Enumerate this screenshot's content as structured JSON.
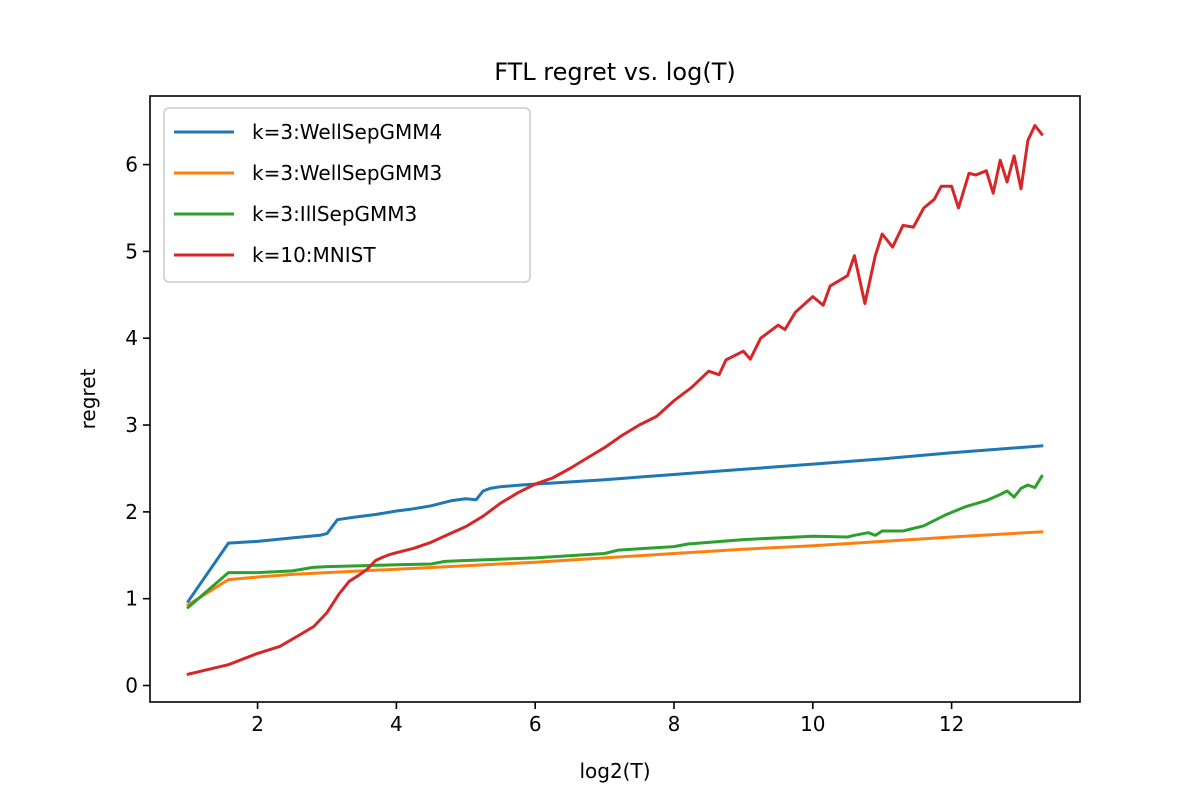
{
  "chart_data": {
    "type": "line",
    "title": "FTL regret vs. log(T)",
    "xlabel": "log2(T)",
    "ylabel": "regret",
    "xlim": [
      0.45,
      13.85
    ],
    "ylim": [
      -0.19,
      6.79
    ],
    "xticks": [
      2,
      4,
      6,
      8,
      10,
      12
    ],
    "yticks": [
      0,
      1,
      2,
      3,
      4,
      5,
      6
    ],
    "grid": false,
    "legend_position": "top-left",
    "series": [
      {
        "name": "k=3:WellSepGMM4",
        "color": "#1f77b4",
        "x": [
          1.0,
          1.58,
          2.0,
          2.5,
          2.9,
          3.0,
          3.15,
          3.4,
          3.7,
          4.0,
          4.2,
          4.5,
          4.8,
          5.0,
          5.15,
          5.25,
          5.35,
          5.5,
          5.8,
          6.2,
          7.0,
          8.0,
          9.0,
          10.0,
          11.0,
          12.0,
          13.3
        ],
        "values": [
          0.97,
          1.64,
          1.66,
          1.7,
          1.73,
          1.75,
          1.91,
          1.94,
          1.97,
          2.01,
          2.03,
          2.07,
          2.13,
          2.15,
          2.14,
          2.24,
          2.27,
          2.29,
          2.31,
          2.33,
          2.37,
          2.43,
          2.49,
          2.55,
          2.61,
          2.68,
          2.76
        ]
      },
      {
        "name": "k=3:WellSepGMM3",
        "color": "#ff7f0e",
        "x": [
          1.0,
          1.58,
          2.0,
          2.5,
          3.0,
          3.5,
          4.0,
          5.0,
          6.0,
          7.0,
          8.0,
          9.0,
          10.0,
          11.0,
          12.0,
          13.3
        ],
        "values": [
          0.93,
          1.22,
          1.25,
          1.28,
          1.3,
          1.32,
          1.34,
          1.38,
          1.42,
          1.47,
          1.52,
          1.57,
          1.61,
          1.66,
          1.71,
          1.77
        ]
      },
      {
        "name": "k=3:IllSepGMM3",
        "color": "#2ca02c",
        "x": [
          1.0,
          1.58,
          2.0,
          2.5,
          2.8,
          3.0,
          3.5,
          4.0,
          4.5,
          4.7,
          5.0,
          6.0,
          7.0,
          7.2,
          8.0,
          8.2,
          9.0,
          10.0,
          10.5,
          10.6,
          10.8,
          10.9,
          11.0,
          11.3,
          11.6,
          11.9,
          12.2,
          12.5,
          12.7,
          12.8,
          12.9,
          13.0,
          13.1,
          13.2,
          13.3
        ],
        "values": [
          0.9,
          1.3,
          1.3,
          1.32,
          1.36,
          1.37,
          1.38,
          1.39,
          1.4,
          1.43,
          1.44,
          1.47,
          1.52,
          1.56,
          1.6,
          1.63,
          1.68,
          1.72,
          1.71,
          1.73,
          1.76,
          1.73,
          1.78,
          1.78,
          1.84,
          1.96,
          2.06,
          2.13,
          2.2,
          2.24,
          2.17,
          2.27,
          2.31,
          2.28,
          2.41
        ]
      },
      {
        "name": "k=10:MNIST",
        "color": "#d62728",
        "x": [
          1.0,
          1.58,
          2.0,
          2.32,
          2.58,
          2.81,
          3.0,
          3.17,
          3.32,
          3.46,
          3.58,
          3.7,
          3.81,
          3.91,
          4.0,
          4.25,
          4.5,
          4.75,
          5.0,
          5.25,
          5.5,
          5.75,
          6.0,
          6.25,
          6.5,
          6.75,
          7.0,
          7.25,
          7.5,
          7.75,
          8.0,
          8.25,
          8.5,
          8.65,
          8.75,
          9.0,
          9.1,
          9.25,
          9.5,
          9.6,
          9.75,
          10.0,
          10.15,
          10.25,
          10.5,
          10.6,
          10.75,
          10.9,
          11.0,
          11.15,
          11.3,
          11.45,
          11.6,
          11.75,
          11.85,
          12.0,
          12.1,
          12.25,
          12.35,
          12.5,
          12.6,
          12.7,
          12.8,
          12.9,
          13.0,
          13.1,
          13.2,
          13.3
        ],
        "values": [
          0.13,
          0.24,
          0.37,
          0.45,
          0.57,
          0.68,
          0.84,
          1.05,
          1.2,
          1.27,
          1.34,
          1.44,
          1.48,
          1.51,
          1.53,
          1.58,
          1.65,
          1.74,
          1.83,
          1.95,
          2.1,
          2.22,
          2.32,
          2.39,
          2.5,
          2.62,
          2.74,
          2.88,
          3.0,
          3.1,
          3.28,
          3.43,
          3.62,
          3.58,
          3.75,
          3.85,
          3.76,
          4.0,
          4.15,
          4.1,
          4.3,
          4.48,
          4.38,
          4.6,
          4.72,
          4.95,
          4.4,
          4.95,
          5.2,
          5.05,
          5.3,
          5.28,
          5.5,
          5.6,
          5.75,
          5.75,
          5.5,
          5.9,
          5.88,
          5.93,
          5.67,
          6.05,
          5.8,
          6.1,
          5.72,
          6.28,
          6.45,
          6.35
        ]
      }
    ]
  }
}
